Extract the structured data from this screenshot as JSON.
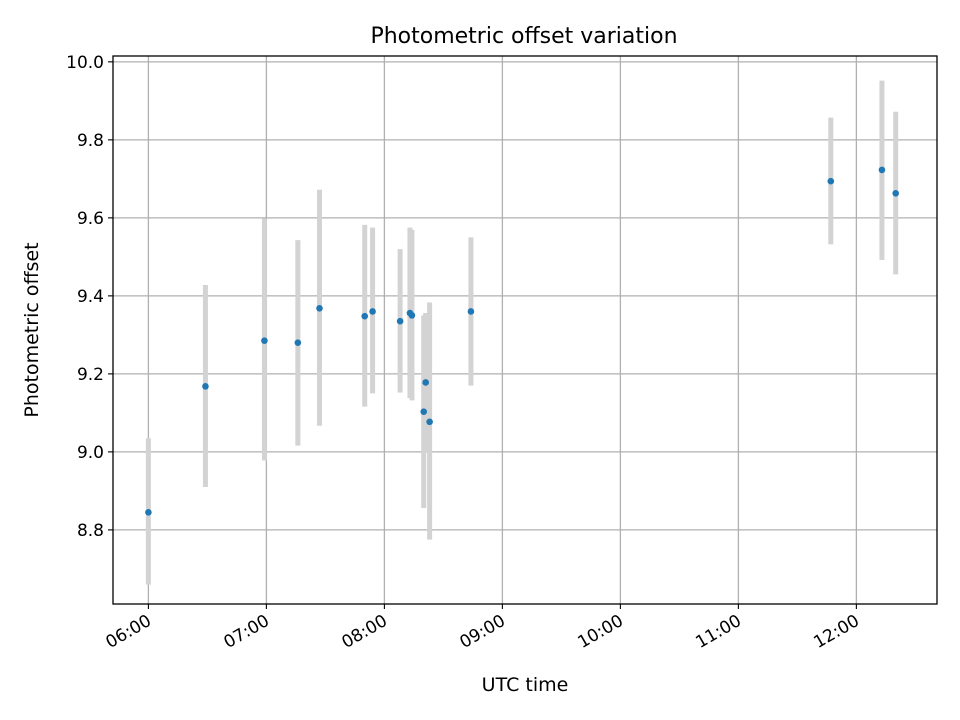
{
  "chart_data": {
    "type": "scatter",
    "title": "Photometric offset variation",
    "xlabel": "UTC time",
    "ylabel": "Photometric offset",
    "x_axis": {
      "kind": "time",
      "min": "05:42",
      "max": "12:41",
      "ticks": [
        "06:00",
        "07:00",
        "08:00",
        "09:00",
        "10:00",
        "11:00",
        "12:00"
      ]
    },
    "y_axis": {
      "min": 8.61,
      "max": 10.015,
      "ticks": [
        "8.8",
        "9.0",
        "9.2",
        "9.4",
        "9.6",
        "9.8",
        "10.0"
      ]
    },
    "grid": true,
    "series": [
      {
        "points": [
          {
            "x": "06:00",
            "y": 8.845,
            "ylow": 8.66,
            "yhigh": 9.035
          },
          {
            "x": "06:29",
            "y": 9.168,
            "ylow": 8.91,
            "yhigh": 9.428
          },
          {
            "x": "06:59",
            "y": 9.285,
            "ylow": 8.978,
            "yhigh": 9.598
          },
          {
            "x": "07:16",
            "y": 9.28,
            "ylow": 9.016,
            "yhigh": 9.543
          },
          {
            "x": "07:27",
            "y": 9.368,
            "ylow": 9.067,
            "yhigh": 9.672
          },
          {
            "x": "07:50",
            "y": 9.348,
            "ylow": 9.116,
            "yhigh": 9.582
          },
          {
            "x": "07:54",
            "y": 9.36,
            "ylow": 9.15,
            "yhigh": 9.575
          },
          {
            "x": "08:08",
            "y": 9.335,
            "ylow": 9.152,
            "yhigh": 9.52
          },
          {
            "x": "08:13",
            "y": 9.356,
            "ylow": 9.138,
            "yhigh": 9.575
          },
          {
            "x": "08:14",
            "y": 9.35,
            "ylow": 9.132,
            "yhigh": 9.569
          },
          {
            "x": "08:20",
            "y": 9.103,
            "ylow": 8.856,
            "yhigh": 9.35
          },
          {
            "x": "08:21",
            "y": 9.178,
            "ylow": 9.0,
            "yhigh": 9.356
          },
          {
            "x": "08:23",
            "y": 9.077,
            "ylow": 8.775,
            "yhigh": 9.383
          },
          {
            "x": "08:44",
            "y": 9.36,
            "ylow": 9.17,
            "yhigh": 9.55
          },
          {
            "x": "11:47",
            "y": 9.694,
            "ylow": 9.532,
            "yhigh": 9.857
          },
          {
            "x": "12:13",
            "y": 9.723,
            "ylow": 9.492,
            "yhigh": 9.952
          },
          {
            "x": "12:20",
            "y": 9.663,
            "ylow": 9.455,
            "yhigh": 9.872
          }
        ]
      }
    ],
    "colors": {
      "point": "#1f77b4",
      "errorbar": "#d3d3d3",
      "grid": "#b0b0b0"
    }
  }
}
